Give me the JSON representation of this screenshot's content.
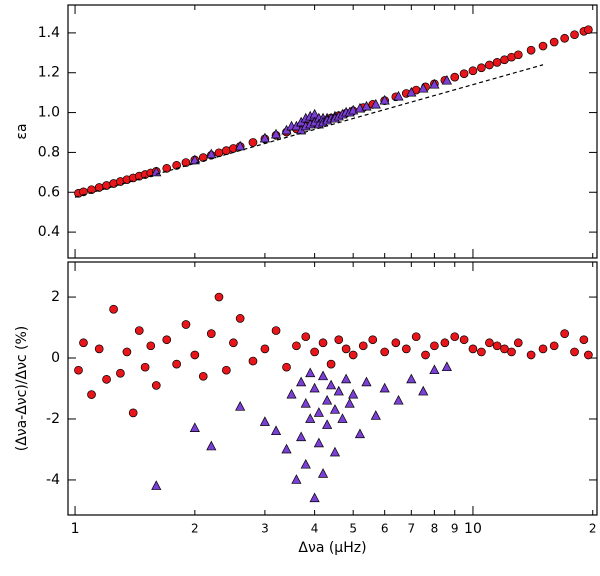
{
  "chart_data": [
    {
      "type": "scatter",
      "ylabel": "εa",
      "log_x": true,
      "xlim": [
        0.96,
        20.5
      ],
      "ylim": [
        0.27,
        1.54
      ],
      "yticks": [
        0.4,
        0.6,
        0.8,
        {
          "value": 1,
          "label": "1.0"
        },
        1.2,
        1.4
      ],
      "series": [
        {
          "color": "#e8161b",
          "marker": "circle",
          "x": [
            1.02,
            1.05,
            1.1,
            1.15,
            1.2,
            1.25,
            1.3,
            1.35,
            1.4,
            1.45,
            1.5,
            1.55,
            1.6,
            1.7,
            1.8,
            1.9,
            2.0,
            2.1,
            2.2,
            2.3,
            2.4,
            2.5,
            2.6,
            2.8,
            3.0,
            3.2,
            3.4,
            3.6,
            3.8,
            4.0,
            4.2,
            4.4,
            4.6,
            4.8,
            5.0,
            5.3,
            5.6,
            6.0,
            6.4,
            6.8,
            7.2,
            7.6,
            8.0,
            8.5,
            9.0,
            9.5,
            10,
            10.5,
            11,
            11.5,
            12,
            12.5,
            13,
            14,
            15,
            16,
            17,
            18,
            19,
            19.5
          ],
          "y": [
            0.595,
            0.602,
            0.613,
            0.624,
            0.634,
            0.644,
            0.654,
            0.663,
            0.672,
            0.681,
            0.689,
            0.697,
            0.705,
            0.72,
            0.735,
            0.749,
            0.762,
            0.774,
            0.786,
            0.798,
            0.809,
            0.82,
            0.83,
            0.85,
            0.868,
            0.886,
            0.902,
            0.918,
            0.932,
            0.946,
            0.96,
            0.973,
            0.985,
            0.997,
            1.009,
            1.025,
            1.041,
            1.06,
            1.079,
            1.096,
            1.113,
            1.129,
            1.144,
            1.162,
            1.178,
            1.195,
            1.21,
            1.225,
            1.239,
            1.252,
            1.265,
            1.278,
            1.29,
            1.313,
            1.334,
            1.354,
            1.373,
            1.391,
            1.408,
            1.416
          ]
        },
        {
          "color": "#7b3fd6",
          "marker": "triangle",
          "x": [
            1.6,
            2.0,
            2.2,
            2.6,
            3.0,
            3.2,
            3.4,
            3.5,
            3.6,
            3.7,
            3.7,
            3.8,
            3.8,
            3.9,
            3.9,
            4.0,
            4.0,
            4.1,
            4.1,
            4.2,
            4.2,
            4.3,
            4.3,
            4.4,
            4.5,
            4.5,
            4.6,
            4.7,
            4.8,
            4.9,
            5.0,
            5.2,
            5.4,
            5.7,
            6.0,
            6.5,
            7.0,
            7.5,
            8.0,
            8.6
          ],
          "y": [
            0.7,
            0.76,
            0.79,
            0.83,
            0.87,
            0.89,
            0.91,
            0.93,
            0.93,
            0.95,
            0.91,
            0.97,
            0.93,
            0.98,
            0.94,
            0.99,
            0.95,
            0.97,
            0.94,
            0.97,
            0.95,
            0.97,
            0.96,
            0.97,
            0.98,
            0.97,
            0.98,
            0.99,
            1.0,
            1.0,
            1.01,
            1.02,
            1.03,
            1.04,
            1.06,
            1.08,
            1.1,
            1.12,
            1.14,
            1.16
          ]
        },
        {
          "color": "#000000",
          "marker": "dashed-line",
          "x": [
            1,
            15
          ],
          "y": [
            0.575,
            1.24
          ]
        }
      ]
    },
    {
      "type": "scatter",
      "ylabel": "(Δνa-Δνc)/Δνc   (%)",
      "xlabel": "Δνa (μHz)",
      "log_x": true,
      "xlim": [
        0.96,
        20.5
      ],
      "ylim": [
        -5.15,
        3.15
      ],
      "xticks": [
        1,
        2,
        3,
        4,
        5,
        6,
        7,
        8,
        9,
        10,
        {
          "value": 20,
          "label": "2"
        }
      ],
      "yticks": [
        -4,
        -2,
        0,
        2
      ],
      "series": [
        {
          "color": "#e8161b",
          "marker": "circle",
          "x": [
            1.02,
            1.05,
            1.1,
            1.15,
            1.2,
            1.25,
            1.3,
            1.35,
            1.4,
            1.45,
            1.5,
            1.55,
            1.6,
            1.7,
            1.8,
            1.9,
            2.0,
            2.1,
            2.2,
            2.3,
            2.4,
            2.5,
            2.6,
            2.8,
            3.0,
            3.2,
            3.4,
            3.6,
            3.8,
            4.0,
            4.2,
            4.4,
            4.6,
            4.8,
            5.0,
            5.3,
            5.6,
            6.0,
            6.4,
            6.8,
            7.2,
            7.6,
            8.0,
            8.5,
            9.0,
            9.5,
            10,
            10.5,
            11,
            11.5,
            12,
            12.5,
            13,
            14,
            15,
            16,
            17,
            18,
            19,
            19.5
          ],
          "y": [
            -0.4,
            0.5,
            -1.2,
            0.3,
            -0.7,
            1.6,
            -0.5,
            0.2,
            -1.8,
            0.9,
            -0.3,
            0.4,
            -0.9,
            0.6,
            -0.2,
            1.1,
            0.1,
            -0.6,
            0.8,
            2.0,
            -0.4,
            0.5,
            1.3,
            -0.1,
            0.3,
            0.9,
            -0.3,
            0.4,
            0.7,
            0.2,
            0.5,
            -0.2,
            0.6,
            0.3,
            0.1,
            0.4,
            0.6,
            0.2,
            0.5,
            0.3,
            0.7,
            0.1,
            0.4,
            0.5,
            0.7,
            0.6,
            0.3,
            0.2,
            0.5,
            0.4,
            0.3,
            0.2,
            0.5,
            0.1,
            0.3,
            0.4,
            0.8,
            0.2,
            0.6,
            0.1
          ]
        },
        {
          "color": "#7b3fd6",
          "marker": "triangle",
          "x": [
            1.6,
            2.0,
            2.2,
            2.6,
            3.0,
            3.2,
            3.4,
            3.5,
            3.6,
            3.7,
            3.7,
            3.8,
            3.8,
            3.9,
            3.9,
            4.0,
            4.0,
            4.1,
            4.1,
            4.2,
            4.2,
            4.3,
            4.3,
            4.4,
            4.5,
            4.5,
            4.6,
            4.7,
            4.8,
            4.9,
            5.0,
            5.2,
            5.4,
            5.7,
            6.0,
            6.5,
            7.0,
            7.5,
            8.0,
            8.6
          ],
          "y": [
            -4.2,
            -2.3,
            -2.9,
            -1.6,
            -2.1,
            -2.4,
            -3.0,
            -1.2,
            -4.0,
            -0.8,
            -2.6,
            -1.5,
            -3.5,
            -0.5,
            -2.0,
            -1.0,
            -4.6,
            -1.8,
            -2.8,
            -0.6,
            -3.8,
            -1.4,
            -2.2,
            -0.9,
            -1.7,
            -3.1,
            -1.1,
            -2.0,
            -0.7,
            -1.5,
            -1.2,
            -2.5,
            -0.8,
            -1.9,
            -1.0,
            -1.4,
            -0.7,
            -1.1,
            -0.4,
            -0.3
          ]
        }
      ]
    }
  ]
}
